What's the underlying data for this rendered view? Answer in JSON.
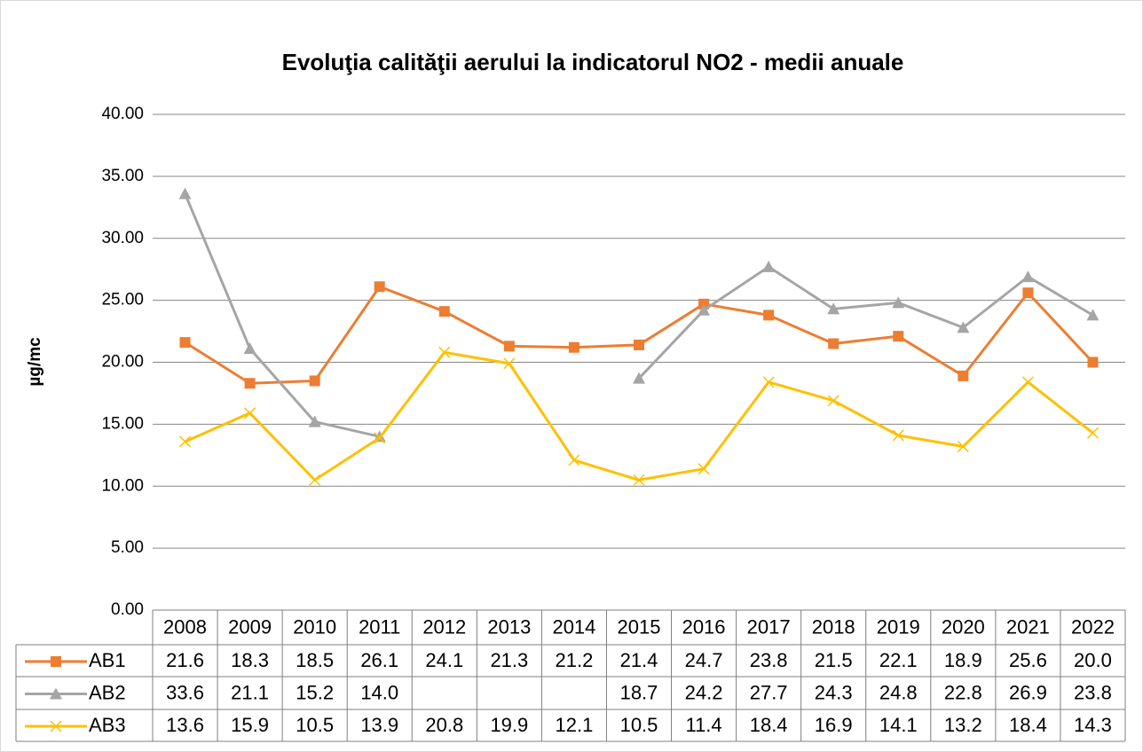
{
  "chart_data": {
    "type": "line",
    "title": "Evoluţia calităţii aerului la indicatorul NO2 - medii anuale",
    "y_label": "µg/mc",
    "categories": [
      "2008",
      "2009",
      "2010",
      "2011",
      "2012",
      "2013",
      "2014",
      "2015",
      "2016",
      "2017",
      "2018",
      "2019",
      "2020",
      "2021",
      "2022"
    ],
    "series": [
      {
        "name": "AB1",
        "color": "#ed7d31",
        "marker": "square",
        "values": [
          21.6,
          18.3,
          18.5,
          26.1,
          24.1,
          21.3,
          21.2,
          21.4,
          24.7,
          23.8,
          21.5,
          22.1,
          18.9,
          25.6,
          20.0
        ],
        "value_labels": [
          "21.6",
          "18.3",
          "18.5",
          "26.1",
          "24.1",
          "21.3",
          "21.2",
          "21.4",
          "24.7",
          "23.8",
          "21.5",
          "22.1",
          "18.9",
          "25.6",
          "20.0"
        ]
      },
      {
        "name": "AB2",
        "color": "#a5a5a5",
        "marker": "triangle",
        "values": [
          33.6,
          21.1,
          15.2,
          14.0,
          null,
          null,
          null,
          18.7,
          24.2,
          27.7,
          24.3,
          24.8,
          22.8,
          26.9,
          23.8
        ],
        "value_labels": [
          "33.6",
          "21.1",
          "15.2",
          "14.0",
          null,
          null,
          null,
          "18.7",
          "24.2",
          "27.7",
          "24.3",
          "24.8",
          "22.8",
          "26.9",
          "23.8"
        ]
      },
      {
        "name": "AB3",
        "color": "#ffc000",
        "marker": "x",
        "values": [
          13.6,
          15.9,
          10.5,
          13.9,
          20.8,
          19.9,
          12.1,
          10.5,
          11.4,
          18.4,
          16.9,
          14.1,
          13.2,
          18.4,
          14.3
        ],
        "value_labels": [
          "13.6",
          "15.9",
          "10.5",
          "13.9",
          "20.8",
          "19.9",
          "12.1",
          "10.5",
          "11.4",
          "18.4",
          "16.9",
          "14.1",
          "13.2",
          "18.4",
          "14.3"
        ]
      }
    ],
    "ylim": [
      0,
      40
    ],
    "yticks": [
      {
        "value": 0,
        "label": "0.00"
      },
      {
        "value": 5,
        "label": "5.00"
      },
      {
        "value": 10,
        "label": "10.00"
      },
      {
        "value": 15,
        "label": "15.00"
      },
      {
        "value": 20,
        "label": "20.00"
      },
      {
        "value": 25,
        "label": "25.00"
      },
      {
        "value": 30,
        "label": "30.00"
      },
      {
        "value": 35,
        "label": "35.00"
      },
      {
        "value": 40,
        "label": "40.00"
      }
    ],
    "grid": true,
    "data_table": true
  }
}
